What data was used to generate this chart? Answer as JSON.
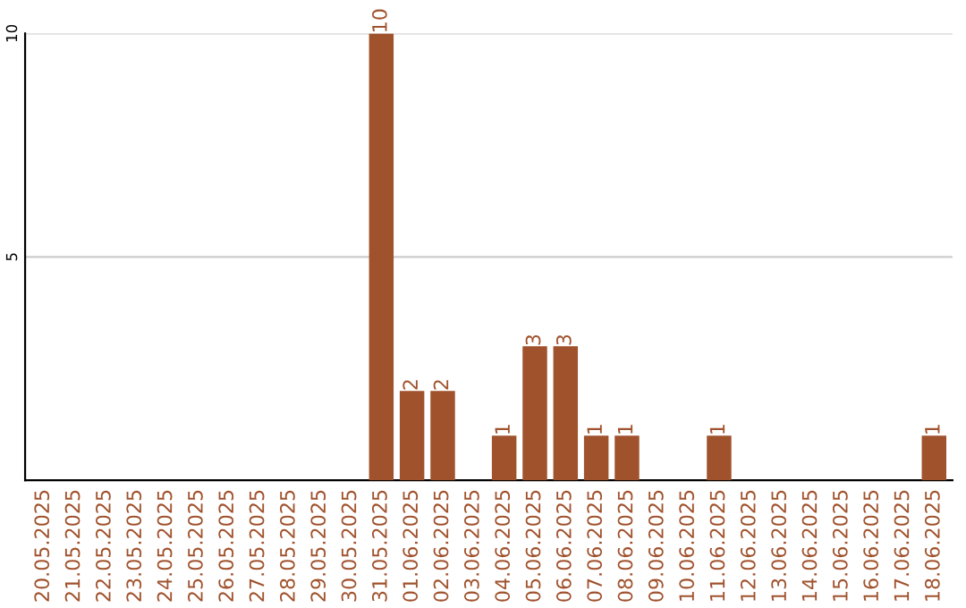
{
  "chart_data": {
    "type": "bar",
    "categories": [
      "20.05.2025",
      "21.05.2025",
      "22.05.2025",
      "23.05.2025",
      "24.05.2025",
      "25.05.2025",
      "26.05.2025",
      "27.05.2025",
      "28.05.2025",
      "29.05.2025",
      "30.05.2025",
      "31.05.2025",
      "01.06.2025",
      "02.06.2025",
      "03.06.2025",
      "04.06.2025",
      "05.06.2025",
      "06.06.2025",
      "07.06.2025",
      "08.06.2025",
      "09.06.2025",
      "10.06.2025",
      "11.06.2025",
      "12.06.2025",
      "13.06.2025",
      "14.06.2025",
      "15.06.2025",
      "16.06.2025",
      "17.06.2025",
      "18.06.2025"
    ],
    "values": [
      0,
      0,
      0,
      0,
      0,
      0,
      0,
      0,
      0,
      0,
      0,
      10,
      2,
      2,
      0,
      1,
      3,
      3,
      1,
      1,
      0,
      0,
      1,
      0,
      0,
      0,
      0,
      0,
      0,
      1
    ],
    "value_labels": [
      null,
      null,
      null,
      null,
      null,
      null,
      null,
      null,
      null,
      null,
      null,
      "10",
      "2",
      "2",
      null,
      "1",
      "3",
      "3",
      "1",
      "1",
      null,
      null,
      "1",
      null,
      null,
      null,
      null,
      null,
      null,
      "1"
    ],
    "color": "#a0522d",
    "ylim": [
      0,
      10
    ],
    "yticks": [
      5,
      10
    ],
    "grid": "y"
  }
}
